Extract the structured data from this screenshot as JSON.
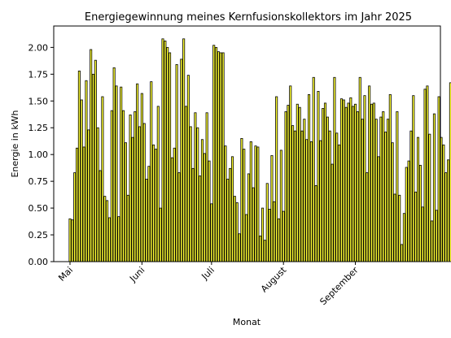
{
  "chart_data": {
    "type": "bar",
    "title": "Energiegewinnung meines Kernfusionskollektors im Jahr 2025",
    "xlabel": "Monat",
    "ylabel": "Energie in kWh",
    "ylim": [
      0,
      2.2
    ],
    "yticks": [
      0.0,
      0.25,
      0.5,
      0.75,
      1.0,
      1.25,
      1.5,
      1.75,
      2.0
    ],
    "ytick_labels": [
      "0.00",
      "0.25",
      "0.50",
      "0.75",
      "1.00",
      "1.25",
      "1.50",
      "1.75",
      "2.00"
    ],
    "x_start": "2025-05-01",
    "x_end": "2025-09-30",
    "xticks": [
      {
        "date": "2025-05-01",
        "label": "Mai"
      },
      {
        "date": "2025-06-01",
        "label": "Juni"
      },
      {
        "date": "2025-07-01",
        "label": "Juli"
      },
      {
        "date": "2025-08-01",
        "label": "August"
      },
      {
        "date": "2025-09-01",
        "label": "September"
      }
    ],
    "bar_color": "#ffff33",
    "edge_color": "#000000",
    "grid": false,
    "legend": "none",
    "values": [
      0.4,
      0.39,
      0.83,
      1.06,
      1.78,
      1.51,
      1.07,
      1.69,
      1.23,
      1.98,
      1.75,
      1.88,
      1.25,
      0.85,
      1.54,
      0.61,
      0.57,
      0.41,
      1.41,
      1.81,
      1.64,
      0.42,
      1.63,
      1.41,
      1.11,
      0.62,
      1.37,
      1.16,
      1.4,
      1.66,
      1.26,
      1.57,
      1.29,
      0.77,
      0.89,
      1.68,
      1.09,
      1.05,
      1.45,
      0.5,
      2.08,
      2.06,
      2.0,
      1.95,
      0.97,
      1.06,
      1.84,
      0.83,
      1.89,
      2.08,
      1.45,
      1.74,
      1.26,
      0.87,
      1.39,
      1.25,
      0.8,
      1.14,
      1.01,
      1.39,
      0.94,
      0.54,
      2.02,
      2.0,
      1.96,
      1.95,
      1.95,
      1.08,
      0.77,
      0.87,
      0.98,
      0.61,
      0.55,
      0.26,
      1.15,
      1.05,
      0.44,
      0.82,
      1.12,
      0.69,
      1.08,
      1.07,
      0.24,
      0.5,
      0.2,
      0.73,
      0.49,
      0.99,
      0.56,
      1.54,
      0.4,
      1.04,
      0.47,
      1.4,
      1.46,
      1.64,
      1.27,
      1.22,
      1.47,
      1.44,
      1.22,
      1.33,
      1.14,
      1.56,
      1.12,
      1.72,
      0.71,
      1.59,
      1.13,
      1.43,
      1.48,
      1.35,
      1.22,
      0.91,
      1.72,
      1.2,
      1.09,
      1.52,
      1.51,
      1.44,
      1.48,
      1.53,
      1.45,
      1.47,
      1.4,
      1.72,
      1.33,
      1.55,
      0.83,
      1.64,
      1.47,
      1.48,
      1.33,
      0.98,
      1.35,
      1.4,
      1.21,
      1.33,
      1.56,
      1.11,
      0.63,
      1.4,
      0.62,
      0.16,
      0.45,
      0.88,
      0.94,
      1.22,
      1.55,
      0.65,
      1.16,
      0.9,
      0.51,
      1.61,
      1.64,
      1.19,
      0.38,
      1.38,
      0.48,
      1.54,
      1.16,
      1.09,
      0.83,
      0.95,
      1.67,
      0.91,
      0.72,
      0.82,
      0.71,
      1.17,
      0.84,
      1.17,
      1.02,
      0.88,
      1.2,
      1.7,
      1.34,
      0.68,
      1.13,
      1.4,
      0.76,
      0.94,
      1.02,
      0.78,
      0.87,
      1.07,
      1.32,
      0.75,
      1.08,
      1.06,
      0.89,
      0.53,
      1.23,
      0.46,
      0.62,
      0.89,
      0.69,
      0.47,
      1.27,
      0.9,
      1.11,
      1.1,
      0.91,
      0.88,
      0.43,
      1.03,
      1.08,
      0.96,
      0.81,
      0.56,
      0.85,
      1.05,
      1.15,
      1.06,
      1.09,
      0.95,
      0.89,
      0.9,
      0.87
    ]
  }
}
